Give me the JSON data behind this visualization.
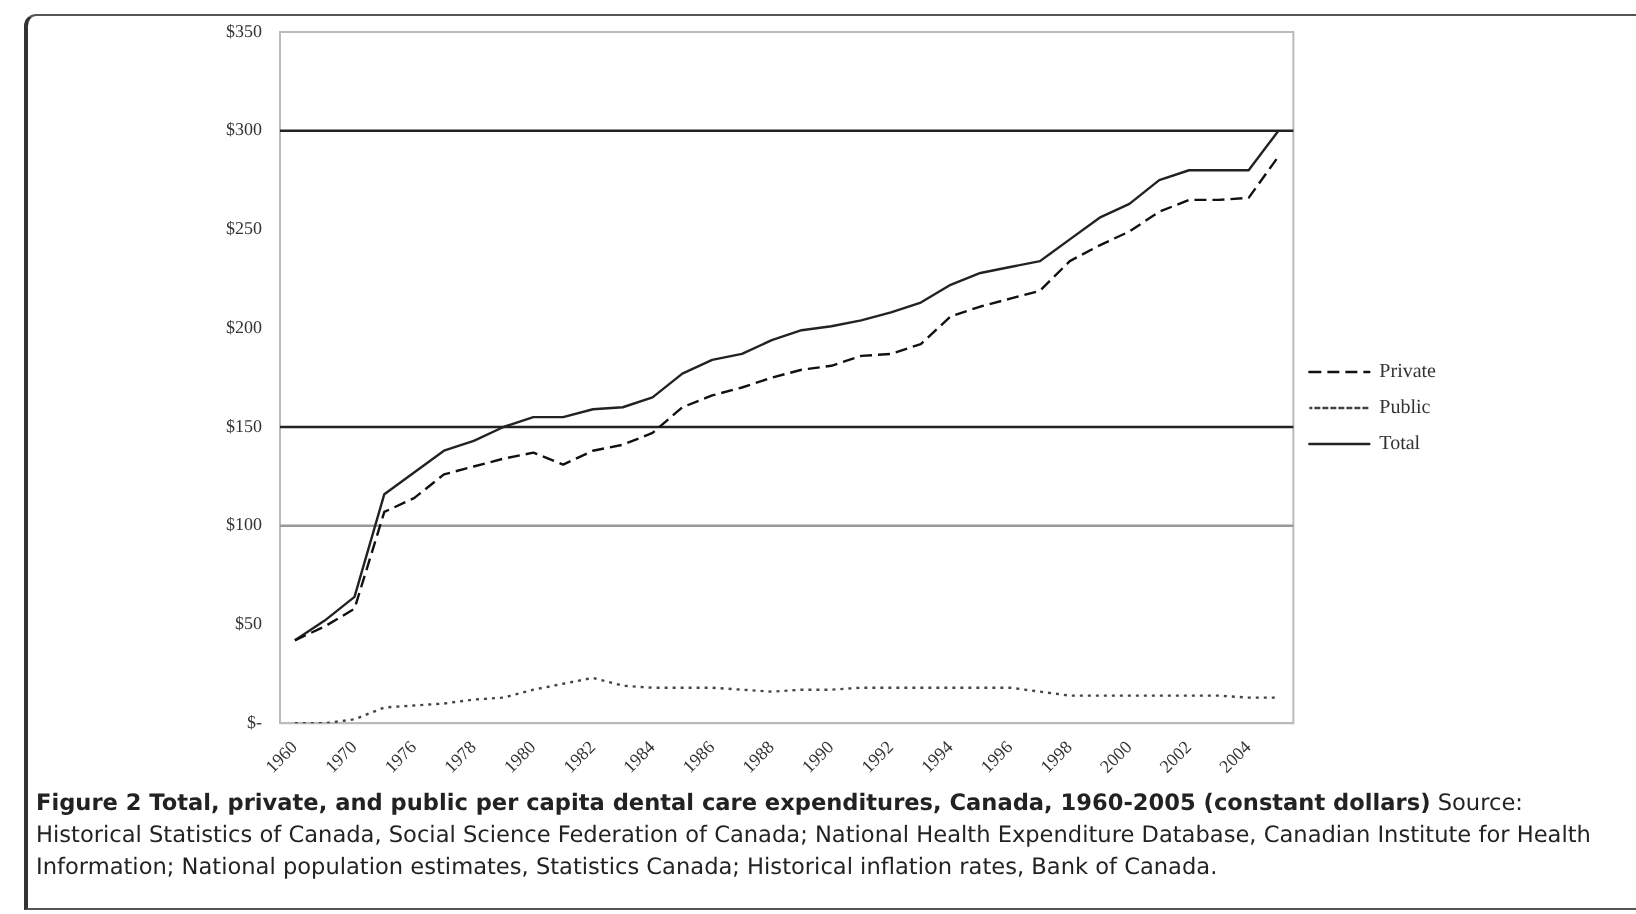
{
  "chart_data": {
    "type": "line",
    "title": "Figure 2 Total, private, and public per capita dental care expenditures, Canada, 1960-2005 (constant dollars)",
    "annotations": [
      "Source: Historical Statistics of Canada, Social Science Federation of Canada; National Health Expenditure Database, Canadian Institute for Health Information; National population estimates, Statistics Canada; Historical inflation rates, Bank of Canada."
    ],
    "categories": [
      "1960",
      null,
      "1970",
      null,
      "1976",
      null,
      "1978",
      null,
      "1980",
      null,
      "1982",
      null,
      "1984",
      null,
      "1986",
      null,
      "1988",
      null,
      "1990",
      null,
      "1992",
      null,
      "1994",
      null,
      "1996",
      null,
      "1998",
      null,
      "2000",
      null,
      "2002",
      null,
      "2004",
      null
    ],
    "series": [
      {
        "name": "Private",
        "color": "#111111",
        "line_style": "dashed",
        "values": [
          42,
          49,
          58,
          107,
          114,
          126,
          130,
          134,
          137,
          131,
          138,
          141,
          147,
          160,
          166,
          170,
          175,
          179,
          181,
          186,
          187,
          192,
          206,
          211,
          215,
          219,
          234,
          242,
          249,
          259,
          265,
          265,
          266,
          287
        ]
      },
      {
        "name": "Public",
        "color": "#444444",
        "line_style": "dotted",
        "values": [
          0,
          0,
          2,
          8,
          9,
          10,
          12,
          13,
          17,
          20,
          23,
          19,
          18,
          18,
          18,
          17,
          16,
          17,
          17,
          18,
          18,
          18,
          18,
          18,
          18,
          16,
          14,
          14,
          14,
          14,
          14,
          14,
          13,
          13
        ]
      },
      {
        "name": "Total",
        "color": "#222222",
        "line_style": "solid",
        "values": [
          42,
          52,
          64,
          116,
          127,
          138,
          143,
          150,
          155,
          155,
          159,
          160,
          165,
          177,
          184,
          187,
          194,
          199,
          201,
          204,
          208,
          213,
          222,
          228,
          231,
          234,
          245,
          256,
          263,
          275,
          280,
          280,
          280,
          300
        ]
      }
    ],
    "ylim": [
      0,
      350
    ],
    "yticks": [
      {
        "value": 0,
        "label": "$-"
      },
      {
        "value": 50,
        "label": "$50"
      },
      {
        "value": 100,
        "label": "$100"
      },
      {
        "value": 150,
        "label": "$150"
      },
      {
        "value": 200,
        "label": "$200"
      },
      {
        "value": 250,
        "label": "$250"
      },
      {
        "value": 300,
        "label": "$300"
      },
      {
        "value": 350,
        "label": "$350"
      }
    ],
    "ref_lines": [
      {
        "axis": "y",
        "value": 100,
        "color": "#999999"
      },
      {
        "axis": "y",
        "value": 150,
        "color": "#222222"
      },
      {
        "axis": "y",
        "value": 300,
        "color": "#222222"
      }
    ],
    "legend": "right",
    "marker": "none",
    "grid": false
  }
}
